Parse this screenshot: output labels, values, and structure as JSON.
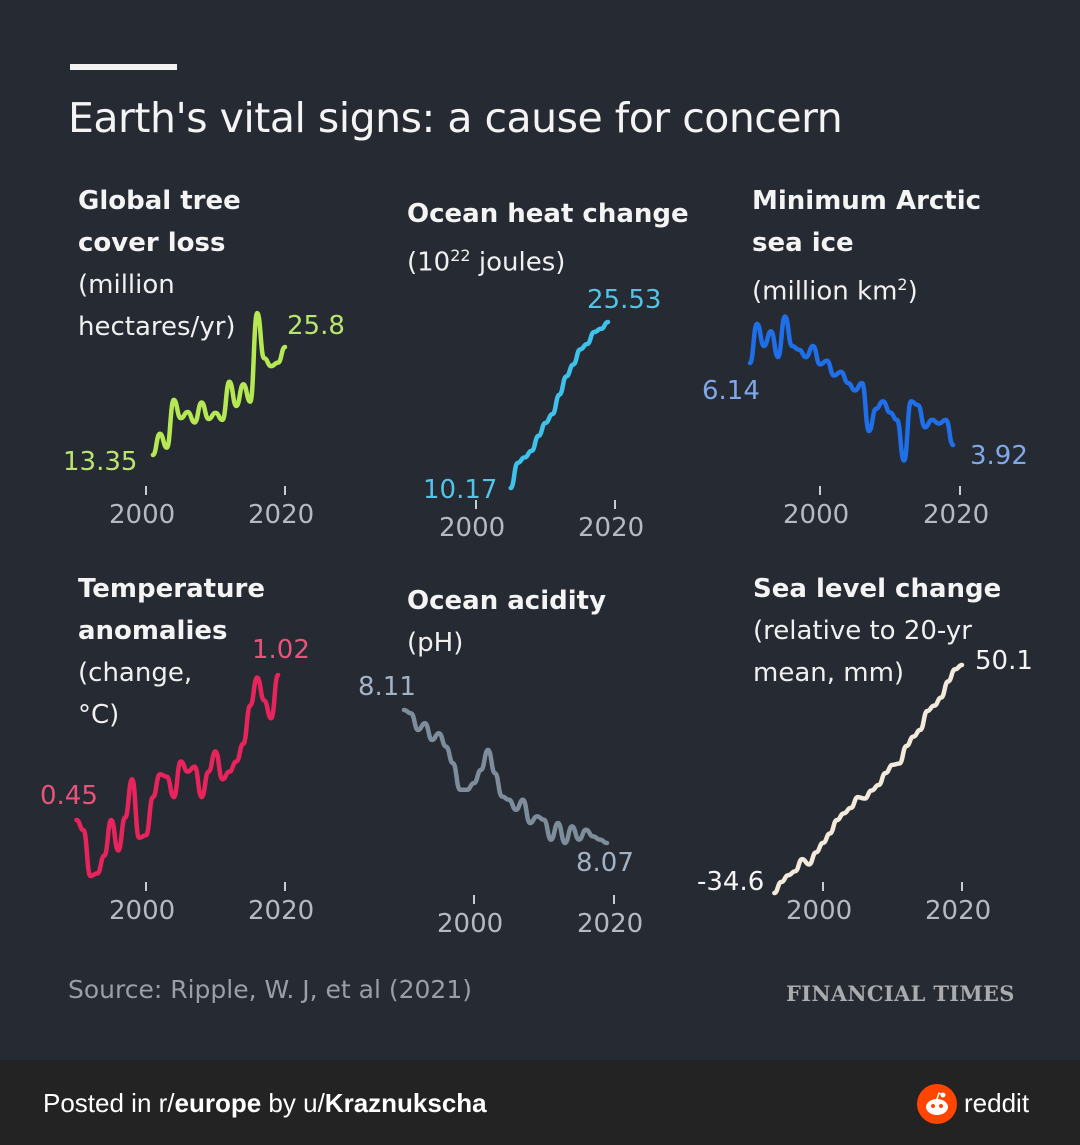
{
  "title": "Earth's vital signs: a cause for concern",
  "source": "Source: Ripple, W. J, et al (2021)",
  "brand": "FINANCIAL TIMES",
  "footer": {
    "prefix": "Posted in r/",
    "subreddit": "europe",
    "by": " by u/",
    "user": "Kraznukscha",
    "logo_text": "reddit",
    "logo_icon": "reddit-snoo-icon",
    "logo_color": "#ff4500"
  },
  "chart_data": [
    {
      "type": "line",
      "title_lines": [
        "Global tree",
        "cover loss"
      ],
      "sub_lines": [
        "(million",
        "hectares/yr)"
      ],
      "color": "#b5e853",
      "label_color": "#b9e56e",
      "x_ticks": [
        "2000",
        "2020"
      ],
      "x": [
        2001,
        2002,
        2003,
        2004,
        2005,
        2006,
        2007,
        2008,
        2009,
        2010,
        2011,
        2012,
        2013,
        2014,
        2015,
        2016,
        2017,
        2018,
        2019,
        2020
      ],
      "y": [
        13.35,
        15.8,
        14.2,
        19.7,
        17.6,
        18.3,
        17.1,
        19.4,
        17.5,
        18.2,
        17.4,
        21.8,
        19.0,
        21.5,
        19.5,
        29.7,
        24.5,
        23.6,
        24.0,
        25.8
      ],
      "start_label": "13.35",
      "end_label": "25.8"
    },
    {
      "type": "line",
      "title_lines": [
        "Ocean heat change"
      ],
      "sub_lines": [
        "(10",
        "22",
        " joules)"
      ],
      "color": "#3ec2ea",
      "label_color": "#52c4e6",
      "x_ticks": [
        "2000",
        "2020"
      ],
      "x": [
        2005,
        2006,
        2007,
        2008,
        2009,
        2010,
        2011,
        2012,
        2013,
        2014,
        2015,
        2016,
        2017,
        2018,
        2019
      ],
      "y": [
        10.17,
        12.5,
        13.0,
        13.6,
        15.0,
        16.2,
        17.0,
        18.8,
        20.5,
        21.6,
        23.0,
        23.5,
        24.6,
        24.9,
        25.53
      ],
      "start_label": "10.17",
      "end_label": "25.53"
    },
    {
      "type": "line",
      "title_lines": [
        "Minimum Arctic",
        "sea ice"
      ],
      "sub_lines": [
        "(million km",
        "2",
        ")"
      ],
      "color": "#1f6fe8",
      "label_color": "#7fa8e8",
      "x_ticks": [
        "2000",
        "2020"
      ],
      "x": [
        1990,
        1991,
        1992,
        1993,
        1994,
        1995,
        1996,
        1997,
        1998,
        1999,
        2000,
        2001,
        2002,
        2003,
        2004,
        2005,
        2006,
        2007,
        2008,
        2009,
        2010,
        2011,
        2012,
        2013,
        2014,
        2015,
        2016,
        2017,
        2018,
        2019
      ],
      "y": [
        6.14,
        7.2,
        6.6,
        7.0,
        6.3,
        7.4,
        6.6,
        6.5,
        6.3,
        6.6,
        6.1,
        6.2,
        5.8,
        5.9,
        5.6,
        5.4,
        5.6,
        4.3,
        4.9,
        5.1,
        4.8,
        4.6,
        3.5,
        5.1,
        5.0,
        4.4,
        4.6,
        4.5,
        4.6,
        3.92
      ],
      "start_label": "6.14",
      "end_label": "3.92"
    },
    {
      "type": "line",
      "title_lines": [
        "Temperature",
        "anomalies"
      ],
      "sub_lines": [
        "(change,",
        "°C)"
      ],
      "color": "#e8245c",
      "label_color": "#e8537c",
      "x_ticks": [
        "2000",
        "2020"
      ],
      "x": [
        1990,
        1991,
        1992,
        1993,
        1994,
        1995,
        1996,
        1997,
        1998,
        1999,
        2000,
        2001,
        2002,
        2003,
        2004,
        2005,
        2006,
        2007,
        2008,
        2009,
        2010,
        2011,
        2012,
        2013,
        2014,
        2015,
        2016,
        2017,
        2018,
        2019
      ],
      "y": [
        0.45,
        0.41,
        0.23,
        0.24,
        0.31,
        0.45,
        0.33,
        0.46,
        0.61,
        0.38,
        0.39,
        0.54,
        0.63,
        0.62,
        0.54,
        0.68,
        0.64,
        0.66,
        0.54,
        0.64,
        0.72,
        0.61,
        0.64,
        0.68,
        0.75,
        0.9,
        1.01,
        0.92,
        0.85,
        1.02
      ],
      "start_label": "0.45",
      "end_label": "1.02"
    },
    {
      "type": "line",
      "title_lines": [
        "Ocean acidity"
      ],
      "sub_lines": [
        "(pH)"
      ],
      "color": "#7e8d9c",
      "label_color": "#a3b3c6",
      "x_ticks": [
        "2000",
        "2020"
      ],
      "x": [
        1990,
        1991,
        1992,
        1993,
        1994,
        1995,
        1996,
        1997,
        1998,
        1999,
        2000,
        2001,
        2002,
        2003,
        2004,
        2005,
        2006,
        2007,
        2008,
        2009,
        2010,
        2011,
        2012,
        2013,
        2014,
        2015,
        2016,
        2017,
        2018,
        2019
      ],
      "y": [
        8.11,
        8.109,
        8.104,
        8.106,
        8.101,
        8.103,
        8.099,
        8.094,
        8.086,
        8.086,
        8.088,
        8.092,
        8.098,
        8.091,
        8.084,
        8.083,
        8.08,
        8.083,
        8.076,
        8.078,
        8.077,
        8.071,
        8.076,
        8.07,
        8.075,
        8.071,
        8.074,
        8.072,
        8.071,
        8.07
      ],
      "start_label": "8.11",
      "end_label": "8.07"
    },
    {
      "type": "line",
      "title_lines": [
        "Sea level change"
      ],
      "sub_lines": [
        "(relative to 20-yr",
        "mean, mm)"
      ],
      "color": "#f3eadb",
      "label_color": "#f4f4f4",
      "x_ticks": [
        "2000",
        "2020"
      ],
      "x": [
        1993,
        1994,
        1995,
        1996,
        1997,
        1998,
        1999,
        2000,
        2001,
        2002,
        2003,
        2004,
        2005,
        2006,
        2007,
        2008,
        2009,
        2010,
        2011,
        2012,
        2013,
        2014,
        2015,
        2016,
        2017,
        2018,
        2019,
        2020
      ],
      "y": [
        -34.6,
        -30.5,
        -28.0,
        -26.5,
        -22.0,
        -24.0,
        -19.5,
        -16.0,
        -12.5,
        -7.5,
        -5.0,
        -3.0,
        1.0,
        0.5,
        3.5,
        5.5,
        10.0,
        13.0,
        13.5,
        20.0,
        23.5,
        26.0,
        33.0,
        35.0,
        38.0,
        44.0,
        48.5,
        50.1
      ],
      "start_label": "-34.6",
      "end_label": "50.1"
    }
  ]
}
